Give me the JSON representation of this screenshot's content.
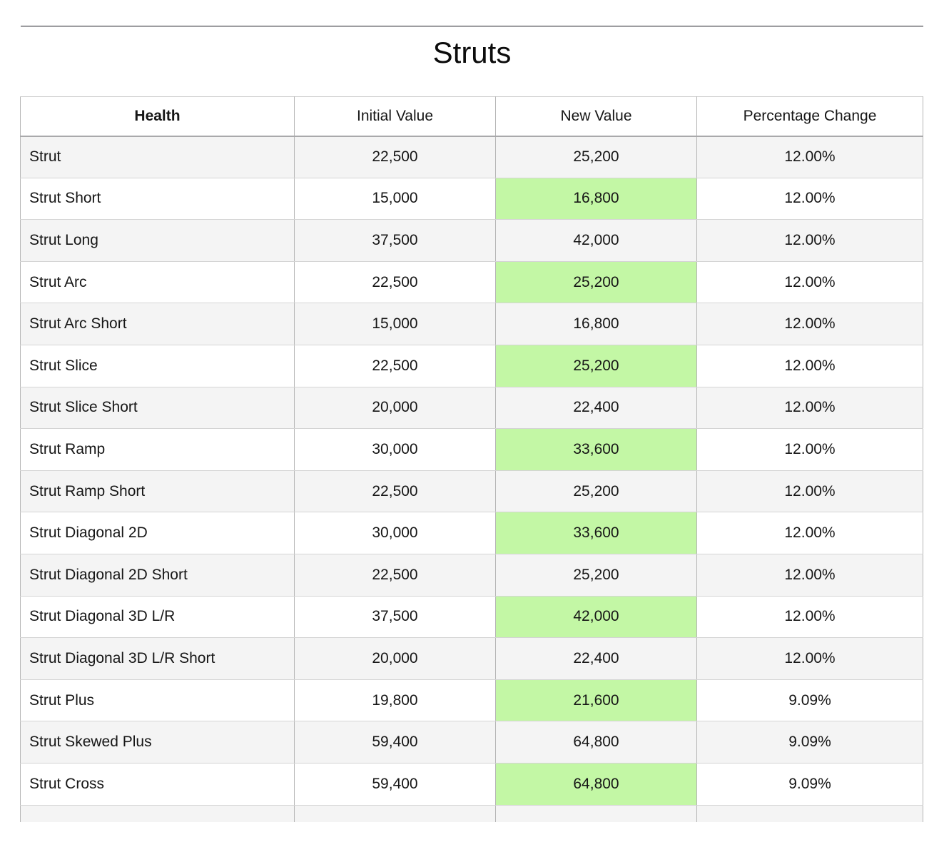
{
  "page": {
    "title": "Struts"
  },
  "table": {
    "columns": [
      "Health",
      "Initial Value",
      "New Value",
      "Percentage Change"
    ],
    "rows": [
      {
        "name": "Strut",
        "initial": "22,500",
        "new": "25,200",
        "pct": "12.00%"
      },
      {
        "name": "Strut Short",
        "initial": "15,000",
        "new": "16,800",
        "pct": "12.00%"
      },
      {
        "name": "Strut Long",
        "initial": "37,500",
        "new": "42,000",
        "pct": "12.00%"
      },
      {
        "name": "Strut Arc",
        "initial": "22,500",
        "new": "25,200",
        "pct": "12.00%"
      },
      {
        "name": "Strut Arc Short",
        "initial": "15,000",
        "new": "16,800",
        "pct": "12.00%"
      },
      {
        "name": "Strut Slice",
        "initial": "22,500",
        "new": "25,200",
        "pct": "12.00%"
      },
      {
        "name": "Strut Slice Short",
        "initial": "20,000",
        "new": "22,400",
        "pct": "12.00%"
      },
      {
        "name": "Strut Ramp",
        "initial": "30,000",
        "new": "33,600",
        "pct": "12.00%"
      },
      {
        "name": "Strut Ramp Short",
        "initial": "22,500",
        "new": "25,200",
        "pct": "12.00%"
      },
      {
        "name": "Strut Diagonal 2D",
        "initial": "30,000",
        "new": "33,600",
        "pct": "12.00%"
      },
      {
        "name": "Strut Diagonal 2D Short",
        "initial": "22,500",
        "new": "25,200",
        "pct": "12.00%"
      },
      {
        "name": "Strut Diagonal 3D L/R",
        "initial": "37,500",
        "new": "42,000",
        "pct": "12.00%"
      },
      {
        "name": "Strut Diagonal 3D L/R Short",
        "initial": "20,000",
        "new": "22,400",
        "pct": "12.00%"
      },
      {
        "name": "Strut Plus",
        "initial": "19,800",
        "new": "21,600",
        "pct": "9.09%"
      },
      {
        "name": "Strut Skewed Plus",
        "initial": "59,400",
        "new": "64,800",
        "pct": "9.09%"
      },
      {
        "name": "Strut Cross",
        "initial": "59,400",
        "new": "64,800",
        "pct": "9.09%"
      }
    ],
    "partial_row": {
      "name": "",
      "initial": "",
      "new": "",
      "pct": ""
    }
  },
  "colors": {
    "highlight_green": "#c3f7a5",
    "row_alt_gray": "#f4f4f4",
    "top_rule_dark": "#56565b"
  }
}
